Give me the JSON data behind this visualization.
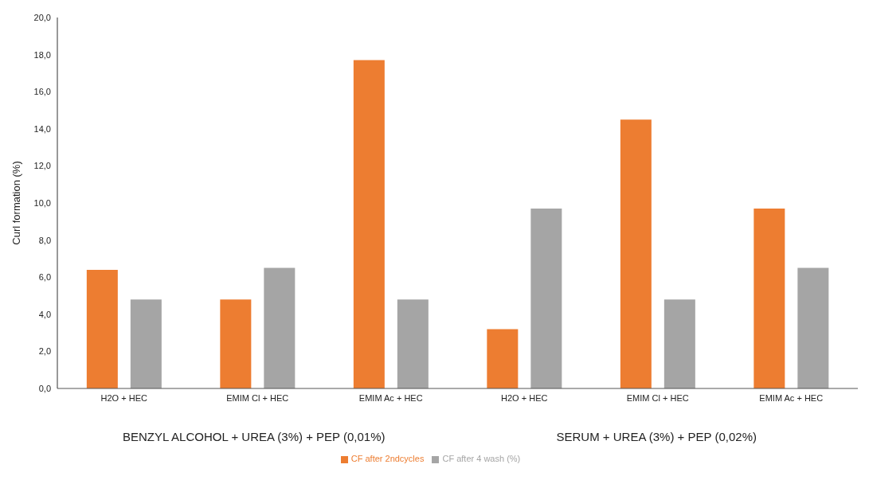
{
  "chart_data": {
    "type": "bar",
    "ylabel": "Curl formation (%)",
    "categories": [
      "H2O + HEC",
      "EMIM Cl + HEC",
      "EMIM Ac + HEC",
      "H2O + HEC",
      "EMIM Cl + HEC",
      "EMIM Ac + HEC"
    ],
    "series": [
      {
        "name": "CF after 2ndcycles",
        "color": "#ed7d31",
        "values": [
          6.4,
          4.8,
          17.7,
          3.2,
          14.5,
          9.7
        ]
      },
      {
        "name": "CF after 4 wash (%)",
        "color": "#a5a5a5",
        "values": [
          4.8,
          6.5,
          4.8,
          9.7,
          4.8,
          6.5
        ]
      }
    ],
    "ylim": [
      0,
      20
    ],
    "yticks": [
      {
        "value": 0,
        "label": "0,0"
      },
      {
        "value": 2,
        "label": "2,0"
      },
      {
        "value": 4,
        "label": "4,0"
      },
      {
        "value": 6,
        "label": "6,0"
      },
      {
        "value": 8,
        "label": "8,0"
      },
      {
        "value": 10,
        "label": "10,0"
      },
      {
        "value": 12,
        "label": "12,0"
      },
      {
        "value": 14,
        "label": "14,0"
      },
      {
        "value": 16,
        "label": "16,0"
      },
      {
        "value": 18,
        "label": "18,0"
      },
      {
        "value": 20,
        "label": "20,0"
      }
    ],
    "grid": false,
    "legend": "bottom",
    "annotations": [
      "BENZYL ALCOHOL + UREA (3%) + PEP (0,01%)",
      "SERUM + UREA (3%) + PEP (0,02%)"
    ]
  }
}
